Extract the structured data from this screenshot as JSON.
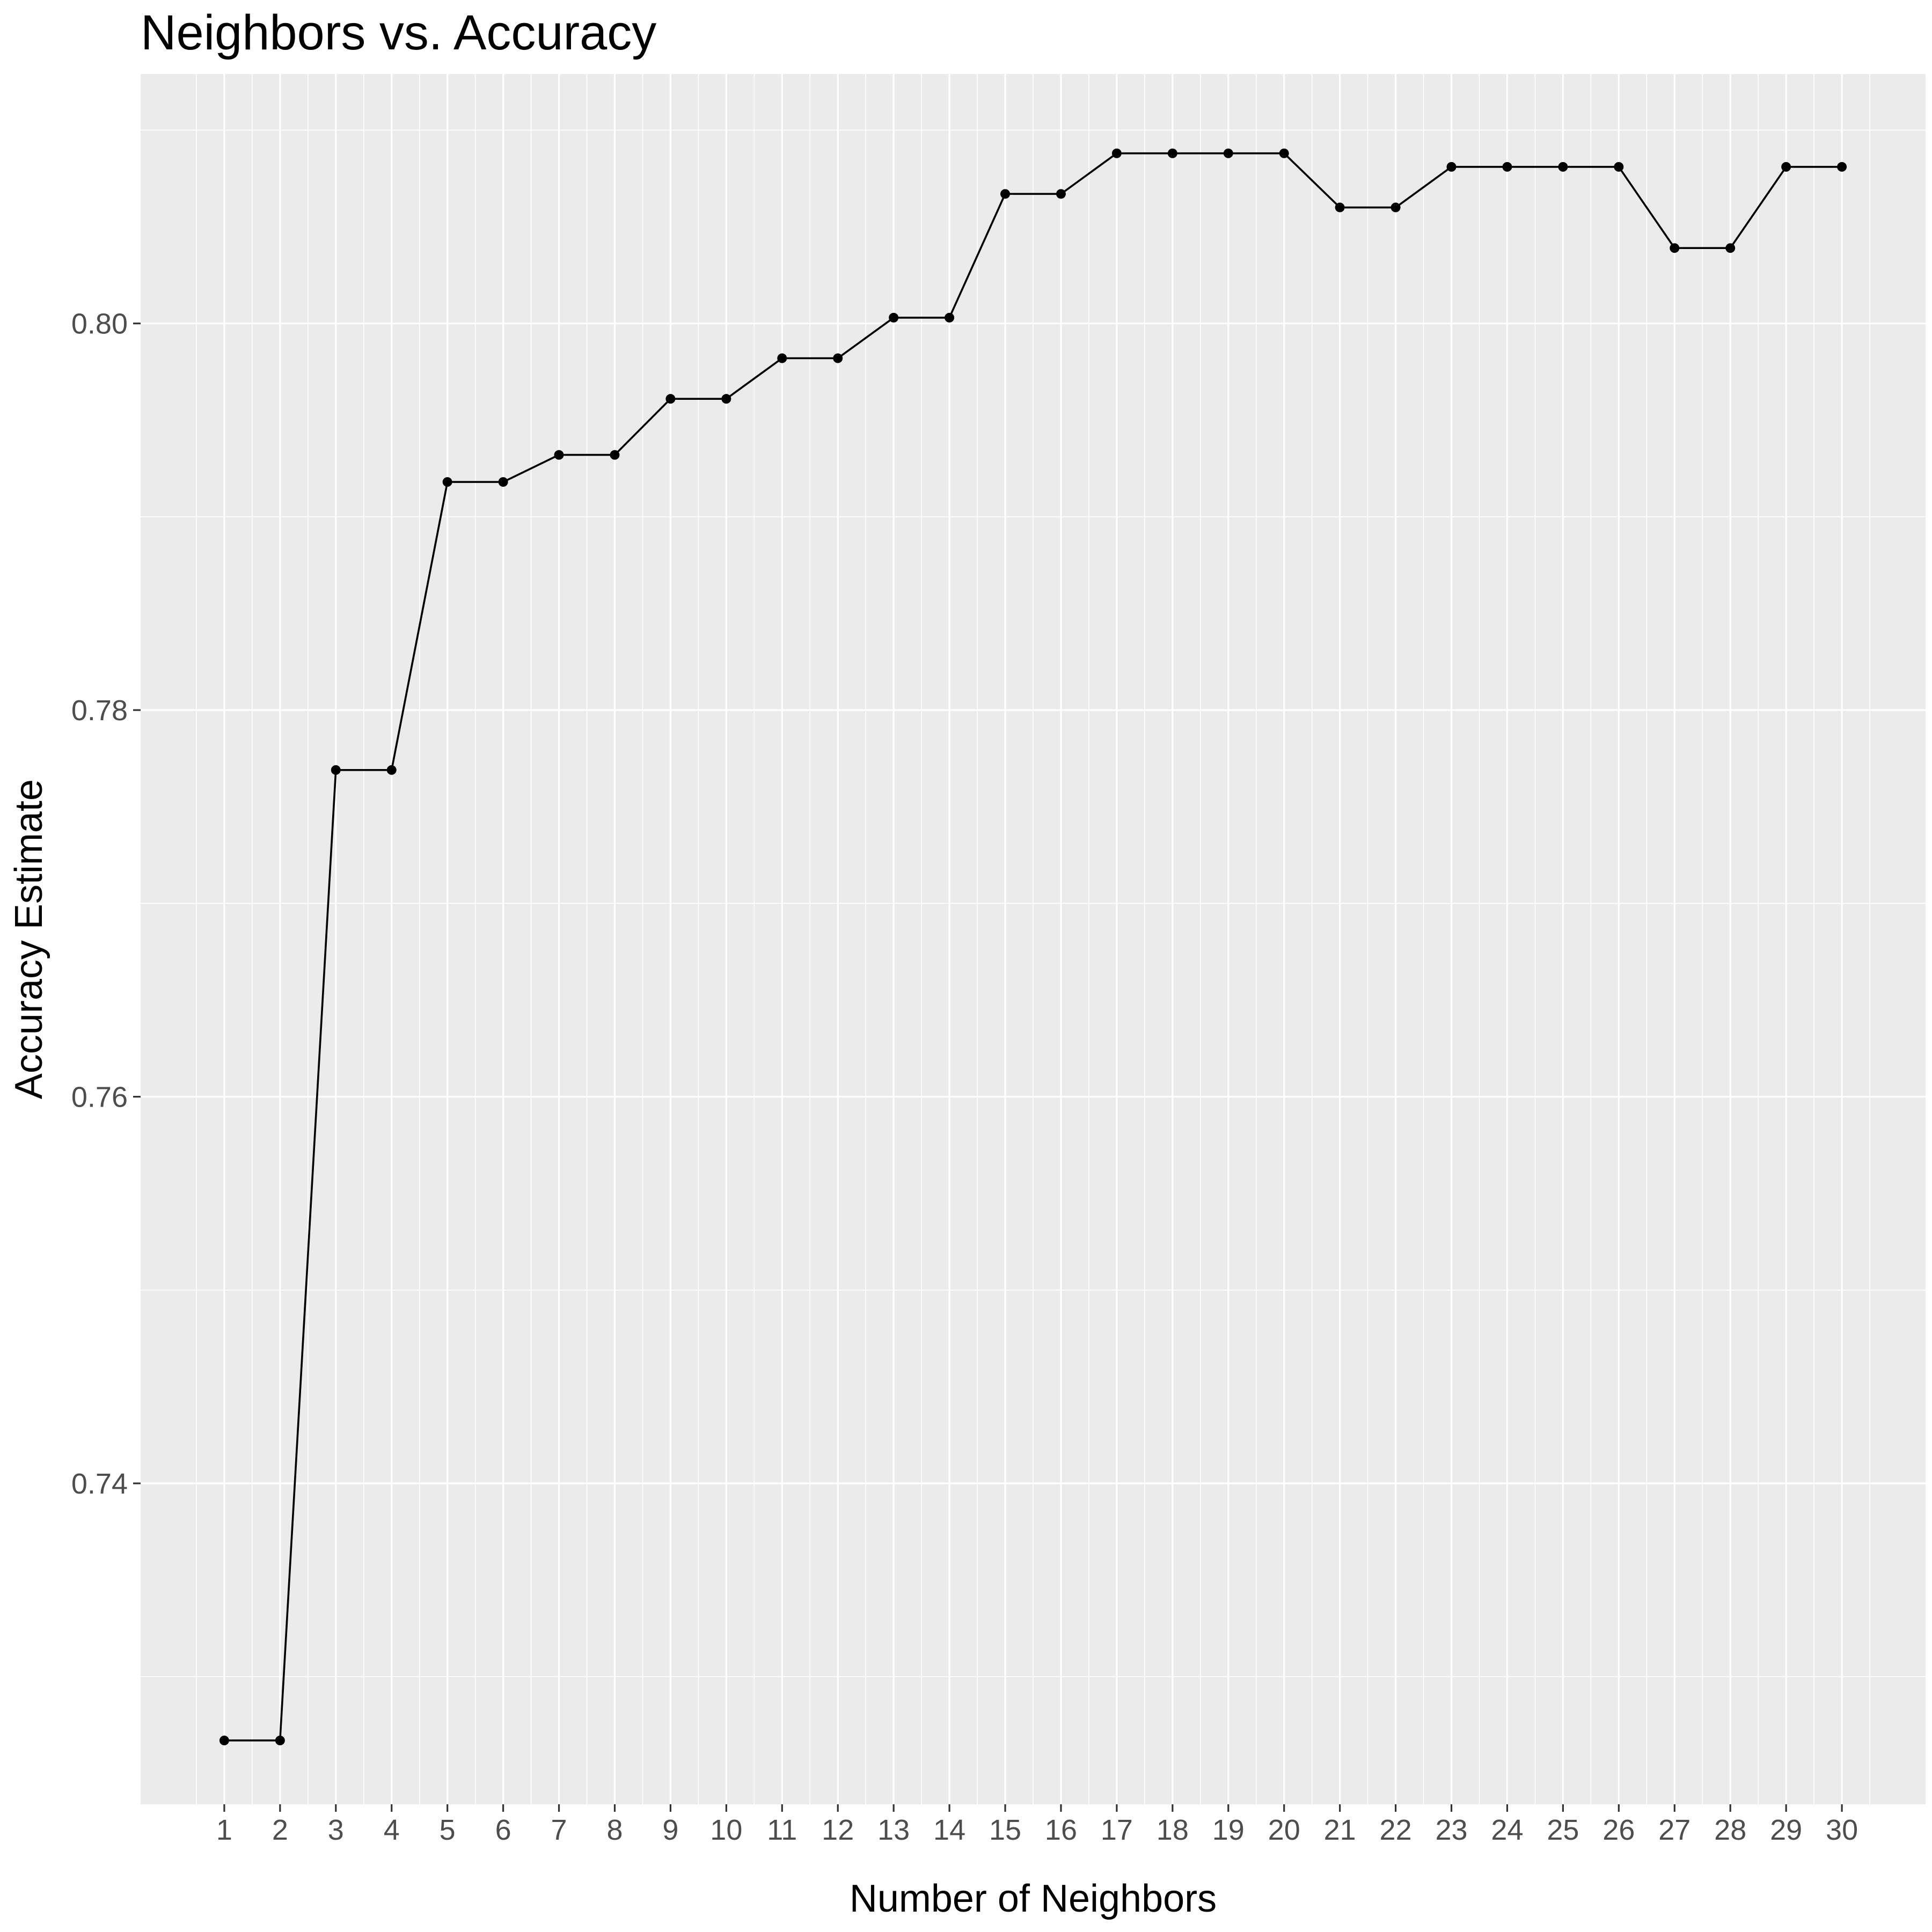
{
  "chart_data": {
    "type": "line",
    "title": "Neighbors vs. Accuracy",
    "xlabel": "Number of Neighbors",
    "ylabel": "Accuracy Estimate",
    "x": [
      1,
      2,
      3,
      4,
      5,
      6,
      7,
      8,
      9,
      10,
      11,
      12,
      13,
      14,
      15,
      16,
      17,
      18,
      19,
      20,
      21,
      22,
      23,
      24,
      25,
      26,
      27,
      28,
      29,
      30
    ],
    "y": [
      0.7267,
      0.7267,
      0.7769,
      0.7769,
      0.7918,
      0.7918,
      0.7932,
      0.7932,
      0.7961,
      0.7961,
      0.7982,
      0.7982,
      0.8003,
      0.8003,
      0.8067,
      0.8067,
      0.8088,
      0.8088,
      0.8088,
      0.8088,
      0.806,
      0.806,
      0.8081,
      0.8081,
      0.8081,
      0.8081,
      0.8039,
      0.8039,
      0.8081,
      0.8081
    ],
    "xlim": [
      -0.5,
      31.5
    ],
    "ylim": [
      0.7234,
      0.8129
    ],
    "y_ticks": [
      0.74,
      0.76,
      0.78,
      0.8
    ],
    "y_tick_labels": [
      "0.74",
      "0.76",
      "0.78",
      "0.80"
    ],
    "x_tick_labels": [
      "1",
      "2",
      "3",
      "4",
      "5",
      "6",
      "7",
      "8",
      "9",
      "10",
      "11",
      "12",
      "13",
      "14",
      "15",
      "16",
      "17",
      "18",
      "19",
      "20",
      "21",
      "22",
      "23",
      "24",
      "25",
      "26",
      "27",
      "28",
      "29",
      "30"
    ],
    "grid": true,
    "legend": "none",
    "colors": {
      "panel": "#ebebeb",
      "grid": "#ffffff",
      "line": "#000000",
      "point": "#000000",
      "tick_text": "#4d4d4d"
    }
  }
}
